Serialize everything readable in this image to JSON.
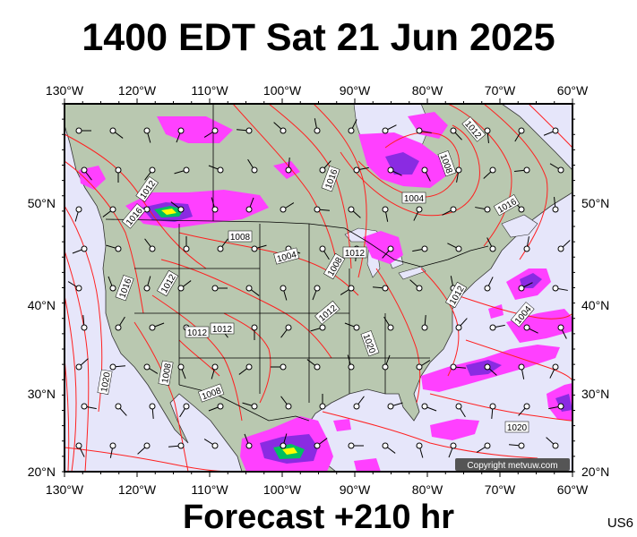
{
  "title": "1400 EDT Sat 21 Jun 2025",
  "subtitle": "Forecast +210 hr",
  "region_code": "US6",
  "copyright": "Copyright metvuw.com",
  "colors": {
    "ocean": "#e6e6fa",
    "land": "#b9c8b0",
    "isobar": "#ff2020",
    "precip_light": "#ff40ff",
    "precip_mid": "#8a2be2",
    "precip_heavy": "#00c060",
    "precip_extreme": "#ffff00",
    "border": "#000000"
  },
  "lon_labels": [
    "130°W",
    "120°W",
    "110°W",
    "100°W",
    "90°W",
    "80°W",
    "70°W",
    "60°W"
  ],
  "lat_labels": [
    "50°N",
    "40°N",
    "30°N",
    "20°N"
  ],
  "isobar_labels": [
    "1012",
    "1016",
    "1008",
    "1004",
    "1008",
    "1012",
    "1016",
    "1004",
    "1012",
    "1008",
    "1012",
    "1016",
    "1012",
    "1020",
    "1012",
    "1012",
    "1004",
    "1012",
    "1016",
    "1020",
    "1020",
    "1008",
    "1008",
    "1020",
    "1016"
  ]
}
